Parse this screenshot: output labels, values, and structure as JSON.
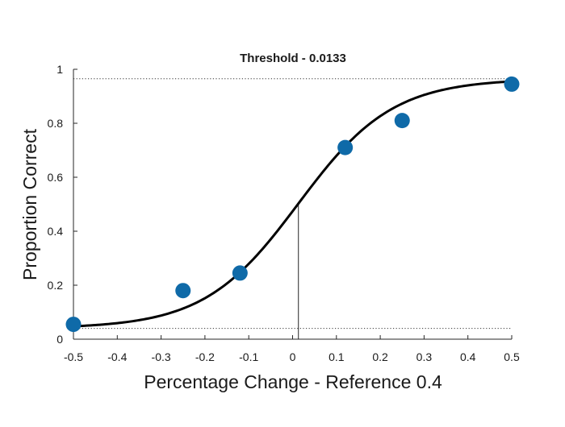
{
  "chart_data": {
    "type": "scatter",
    "title": "Threshold - 0.0133",
    "xlabel": "Percentage Change - Reference 0.4",
    "ylabel": "Proportion Correct",
    "xlim": [
      -0.5,
      0.5
    ],
    "ylim": [
      0,
      1
    ],
    "xticks": [
      -0.5,
      -0.4,
      -0.3,
      -0.2,
      -0.1,
      0,
      0.1,
      0.2,
      0.3,
      0.4,
      0.5
    ],
    "xtick_labels": [
      "-0.5",
      "-0.4",
      "-0.3",
      "-0.2",
      "-0.1",
      "0",
      "0.1",
      "0.2",
      "0.3",
      "0.4",
      "0.5"
    ],
    "yticks": [
      0,
      0.2,
      0.4,
      0.6,
      0.8,
      1
    ],
    "ytick_labels": [
      "0",
      "0.2",
      "0.4",
      "0.6",
      "0.8",
      "1"
    ],
    "grid": false,
    "points": {
      "x": [
        -0.5,
        -0.25,
        -0.12,
        0.12,
        0.25,
        0.5
      ],
      "y": [
        0.055,
        0.18,
        0.245,
        0.71,
        0.81,
        0.945
      ],
      "color": "#0f6aa8"
    },
    "fit_curve": {
      "lower_asymptote": 0.04,
      "upper_asymptote": 0.965,
      "midpoint": 0.0133,
      "slope": 9.3,
      "color": "#000000"
    },
    "reference_lines": {
      "upper": 0.965,
      "lower": 0.04,
      "threshold_x": 0.0133,
      "threshold_y": 0.5
    }
  }
}
